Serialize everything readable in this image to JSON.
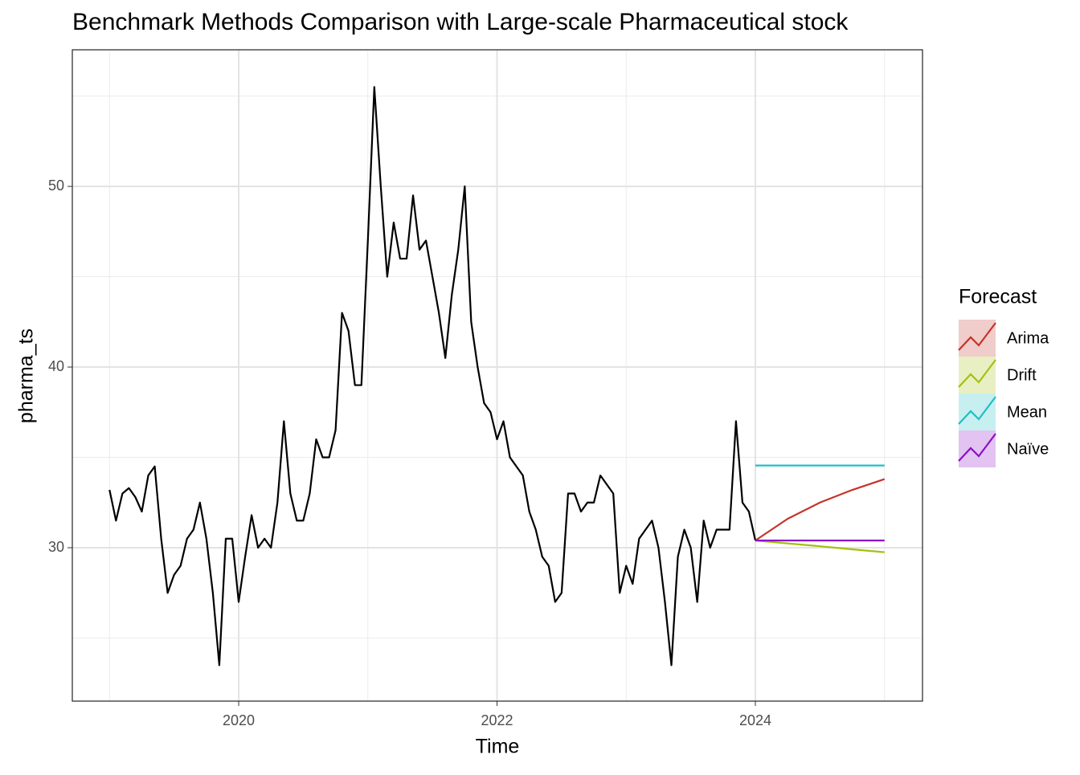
{
  "chart_data": {
    "type": "line",
    "title": "Benchmark Methods Comparison with Large-scale Pharmaceutical stock",
    "x_label": "Time",
    "y_label": "pharma_ts",
    "xlim": [
      2018.712,
      2025.294
    ],
    "ylim": [
      21.51,
      57.56
    ],
    "xticks": [
      2020,
      2022,
      2024
    ],
    "yticks": [
      30,
      40,
      50
    ],
    "grid": true,
    "legend_title": "Forecast",
    "legend_position": "right",
    "series": [
      {
        "color": "#000000",
        "x": [
          2019,
          2019.05,
          2019.1,
          2019.15,
          2019.2,
          2019.25,
          2019.3,
          2019.35,
          2019.4,
          2019.45,
          2019.5,
          2019.55,
          2019.6,
          2019.65,
          2019.7,
          2019.75,
          2019.8,
          2019.85,
          2019.9,
          2019.95,
          2020,
          2020.05,
          2020.1,
          2020.15,
          2020.2,
          2020.25,
          2020.3,
          2020.35,
          2020.4,
          2020.45,
          2020.5,
          2020.55,
          2020.6,
          2020.65,
          2020.7,
          2020.75,
          2020.8,
          2020.85,
          2020.9,
          2020.95,
          2021,
          2021.05,
          2021.1,
          2021.15,
          2021.2,
          2021.25,
          2021.3,
          2021.35,
          2021.4,
          2021.45,
          2021.5,
          2021.55,
          2021.6,
          2021.65,
          2021.7,
          2021.75,
          2021.8,
          2021.85,
          2021.9,
          2021.95,
          2022,
          2022.05,
          2022.1,
          2022.15,
          2022.2,
          2022.25,
          2022.3,
          2022.35,
          2022.4,
          2022.45,
          2022.5,
          2022.55,
          2022.6,
          2022.65,
          2022.7,
          2022.75,
          2022.8,
          2022.85,
          2022.9,
          2022.95,
          2023,
          2023.05,
          2023.1,
          2023.15,
          2023.2,
          2023.25,
          2023.3,
          2023.35,
          2023.4,
          2023.45,
          2023.5,
          2023.55,
          2023.6,
          2023.65,
          2023.7,
          2023.75,
          2023.8,
          2023.85,
          2023.9,
          2023.95,
          2024
        ],
        "values": [
          33.2,
          31.5,
          33,
          33.3,
          32.8,
          32,
          34,
          34.5,
          30.5,
          27.5,
          28.5,
          29,
          30.5,
          31,
          32.5,
          30.5,
          27.5,
          23.5,
          30.5,
          30.5,
          27,
          29.5,
          31.8,
          30,
          30.5,
          30,
          32.5,
          37,
          33,
          31.5,
          31.5,
          33,
          36,
          35,
          35,
          36.5,
          43,
          42,
          39,
          39,
          47,
          55.5,
          50,
          45,
          48,
          46,
          46,
          49.5,
          46.5,
          47,
          45,
          43,
          40.5,
          44,
          46.5,
          50,
          42.5,
          40,
          38,
          37.5,
          36,
          37,
          35,
          34.5,
          34,
          32,
          31,
          29.5,
          29,
          27,
          27.5,
          33,
          33,
          32,
          32.5,
          32.5,
          34,
          33.5,
          33,
          27.5,
          29,
          28,
          30.5,
          31,
          31.5,
          30,
          27,
          23.5,
          29.5,
          31,
          30,
          27,
          31.5,
          30,
          31,
          31,
          31,
          37,
          32.5,
          32,
          30.4
        ]
      },
      {
        "name": "Arima",
        "color": "#c4342a",
        "x": [
          2024,
          2024.25,
          2024.5,
          2024.75,
          2025
        ],
        "values": [
          30.4,
          31.6,
          32.5,
          33.2,
          33.8
        ]
      },
      {
        "name": "Drift",
        "color": "#a3c10e",
        "x": [
          2024,
          2024.25,
          2024.5,
          2024.75,
          2025
        ],
        "values": [
          30.4,
          30.24,
          30.08,
          29.91,
          29.75
        ]
      },
      {
        "name": "Mean",
        "color": "#1fbfc3",
        "x": [
          2024,
          2024.25,
          2024.5,
          2024.75,
          2025
        ],
        "values": [
          34.55,
          34.55,
          34.55,
          34.55,
          34.55
        ]
      },
      {
        "name": "Naïve",
        "color": "#8a0fc9",
        "x": [
          2024,
          2024.25,
          2024.5,
          2024.75,
          2025
        ],
        "values": [
          30.4,
          30.4,
          30.4,
          30.4,
          30.4
        ]
      }
    ]
  }
}
